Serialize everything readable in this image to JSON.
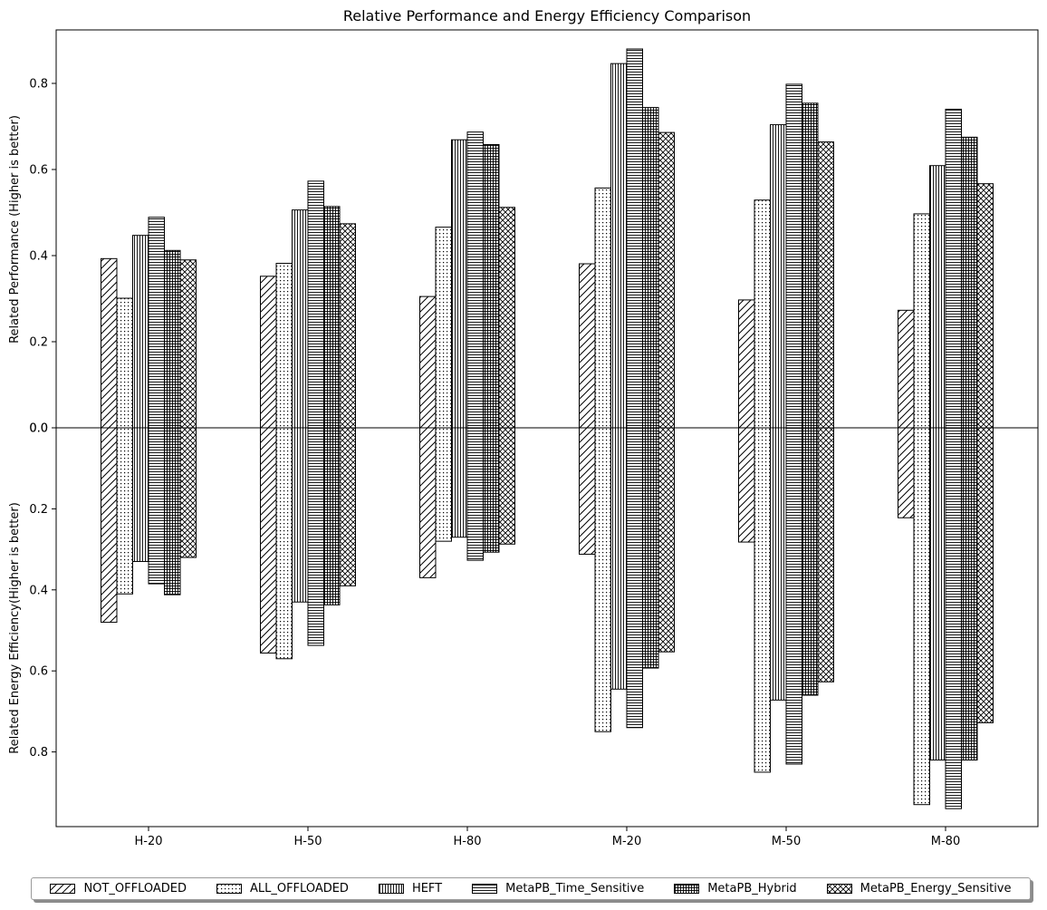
{
  "chart_data": {
    "type": "bar",
    "title": "Relative Performance and Energy Efficiency Comparison",
    "ylabel_top": "Related Performance (Higher is better)",
    "ylabel_bottom": "Related Energy Efficiency(Higher is better)",
    "categories": [
      "H-20",
      "H-50",
      "H-80",
      "M-20",
      "M-50",
      "M-80"
    ],
    "yticks_top": [
      "0.0",
      "0.2",
      "0.4",
      "0.6",
      "0.8"
    ],
    "yticks_bottom": [
      "0.0",
      "0.2",
      "0.4",
      "0.6",
      "0.8"
    ],
    "series": [
      {
        "name": "NOT_OFFLOADED",
        "hatch": "diagonal",
        "performance": [
          0.393,
          0.352,
          0.305,
          0.381,
          0.297,
          0.273
        ],
        "energy": [
          0.48,
          0.556,
          0.37,
          0.312,
          0.282,
          0.222
        ]
      },
      {
        "name": "ALL_OFFLOADED",
        "hatch": "dots",
        "performance": [
          0.301,
          0.382,
          0.466,
          0.557,
          0.529,
          0.497
        ],
        "energy": [
          0.41,
          0.57,
          0.28,
          0.75,
          0.85,
          0.93
        ]
      },
      {
        "name": "HEFT",
        "hatch": "vertical",
        "performance": [
          0.447,
          0.506,
          0.669,
          0.846,
          0.704,
          0.609
        ],
        "energy": [
          0.33,
          0.43,
          0.27,
          0.645,
          0.672,
          0.82
        ]
      },
      {
        "name": "MetaPB_Time_Sensitive",
        "hatch": "horizontal",
        "performance": [
          0.489,
          0.573,
          0.687,
          0.88,
          0.798,
          0.74
        ],
        "energy": [
          0.385,
          0.537,
          0.327,
          0.74,
          0.83,
          0.94
        ]
      },
      {
        "name": "MetaPB_Hybrid",
        "hatch": "grid",
        "performance": [
          0.412,
          0.514,
          0.658,
          0.744,
          0.754,
          0.675
        ],
        "energy": [
          0.412,
          0.437,
          0.307,
          0.593,
          0.66,
          0.82
        ]
      },
      {
        "name": "MetaPB_Energy_Sensitive",
        "hatch": "crosshatch",
        "performance": [
          0.39,
          0.474,
          0.512,
          0.686,
          0.664,
          0.567
        ],
        "energy": [
          0.32,
          0.39,
          0.287,
          0.553,
          0.627,
          0.728
        ]
      }
    ],
    "ylim_top": [
      0,
      0.92
    ],
    "ylim_bottom": [
      0,
      0.99
    ],
    "grid": false,
    "legend": "bottom"
  }
}
